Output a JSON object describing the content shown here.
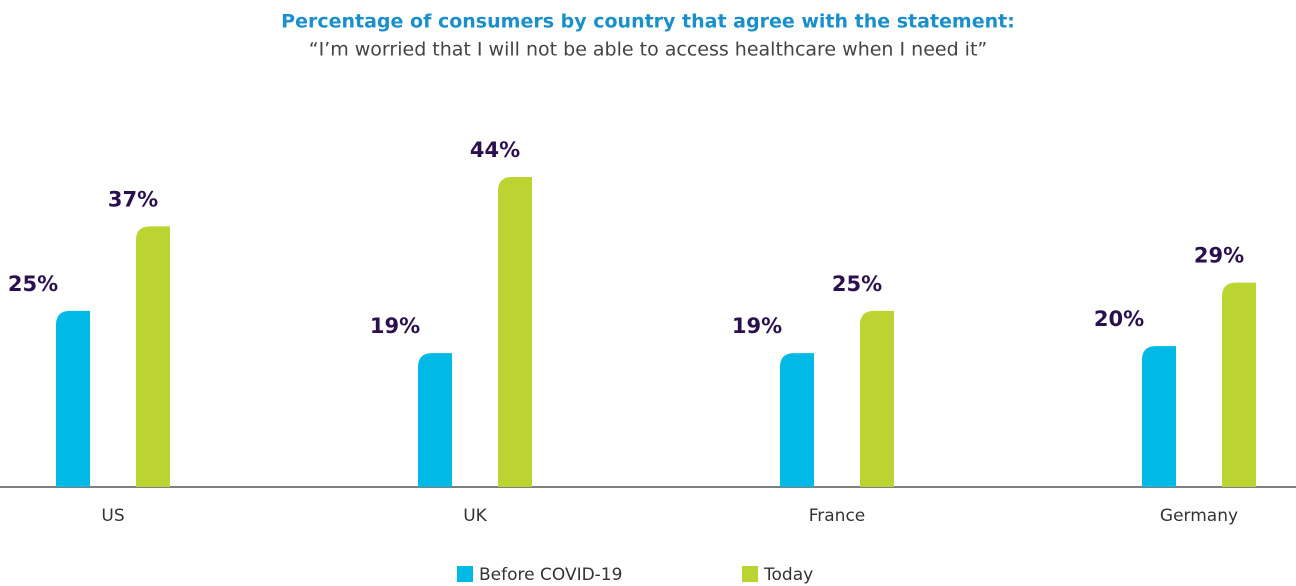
{
  "chart_data": {
    "type": "bar",
    "title": "Percentage of consumers by country that agree with the statement:",
    "subtitle": "“I’m worried that I will not be able to access healthcare when I need it”",
    "categories": [
      "US",
      "UK",
      "France",
      "Germany"
    ],
    "series": [
      {
        "name": "Before COVID-19",
        "color": "#00b9e4",
        "values": [
          25,
          19,
          19,
          20
        ],
        "value_labels": [
          "25%",
          "19%",
          "19%",
          "20%"
        ]
      },
      {
        "name": "Today",
        "color": "#bcd431",
        "values": [
          37,
          44,
          25,
          29
        ],
        "value_labels": [
          "37%",
          "44%",
          "25%",
          "29%"
        ]
      }
    ]
  }
}
